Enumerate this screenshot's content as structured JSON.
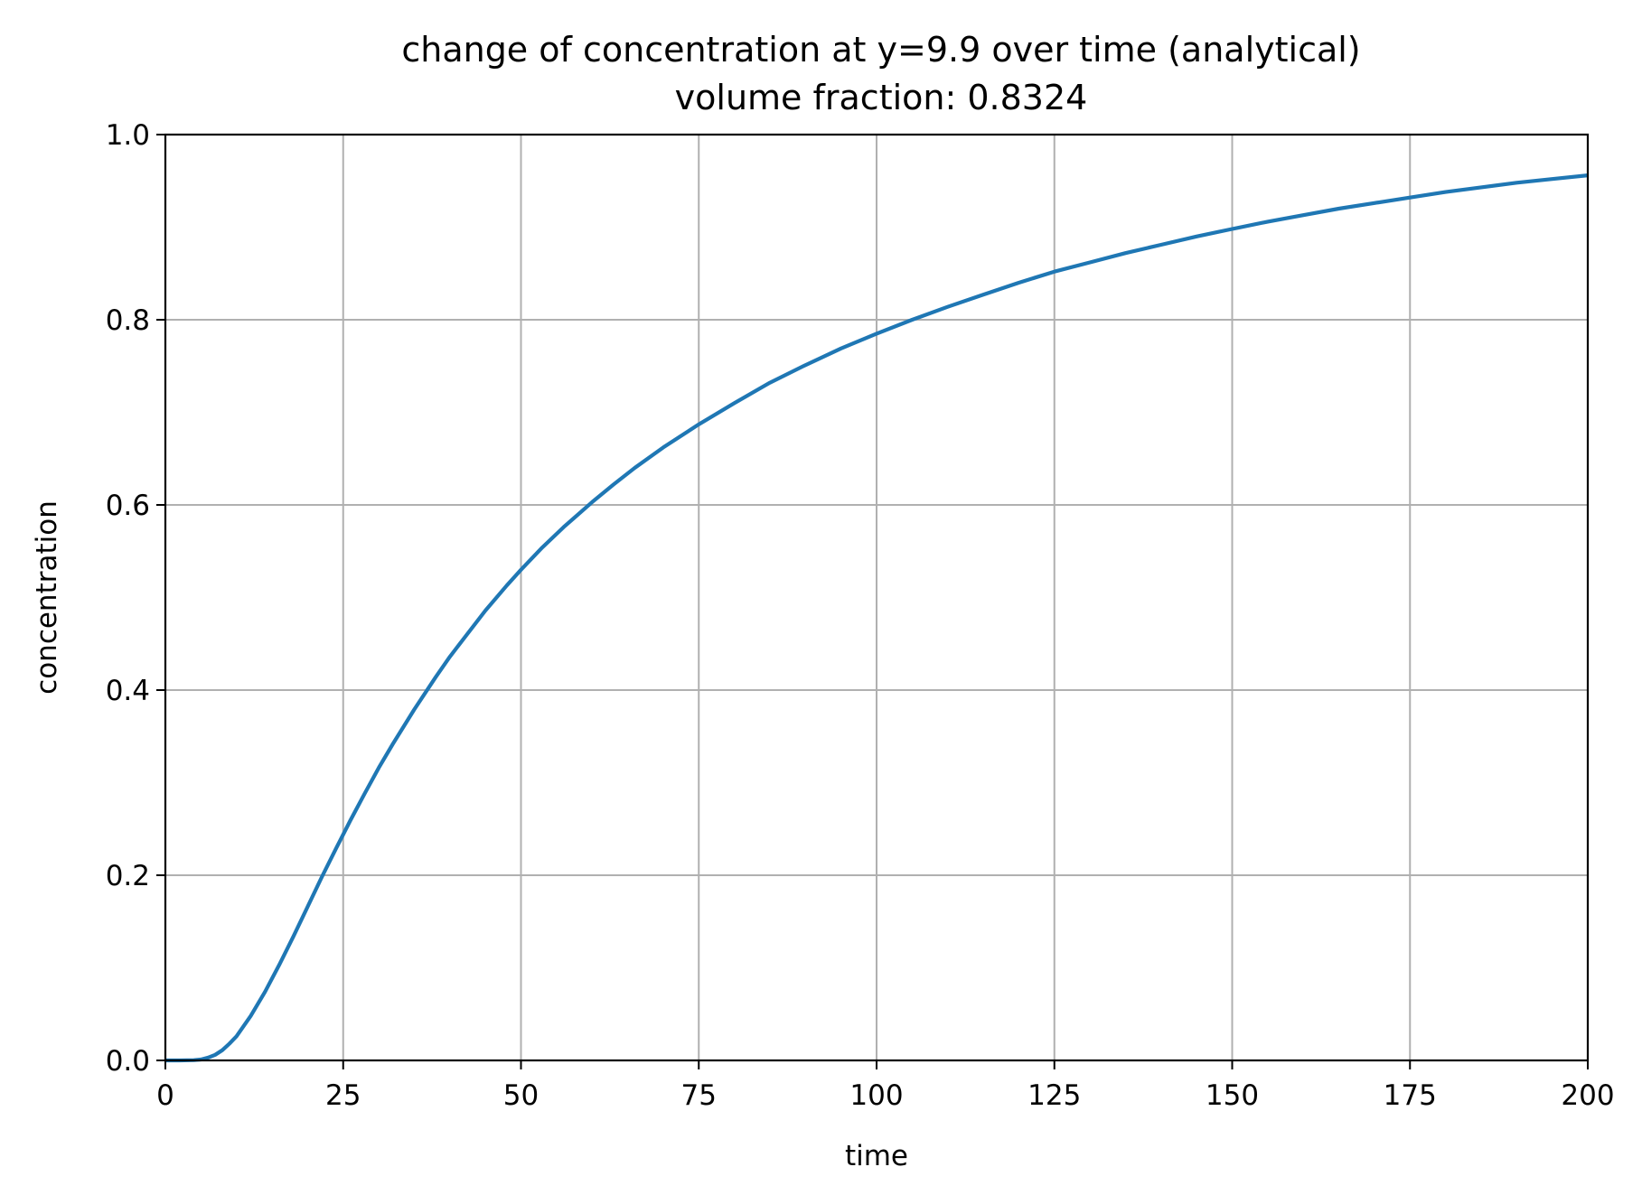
{
  "chart_data": {
    "type": "line",
    "title": "change of concentration at y=9.9 over time (analytical)",
    "subtitle": "volume fraction: 0.8324",
    "xlabel": "time",
    "ylabel": "concentration",
    "xlim": [
      0,
      200
    ],
    "ylim": [
      0,
      1.0
    ],
    "xticks": [
      0,
      25,
      50,
      75,
      100,
      125,
      150,
      175,
      200
    ],
    "xtick_labels": [
      "0",
      "25",
      "50",
      "75",
      "100",
      "125",
      "150",
      "175",
      "200"
    ],
    "yticks": [
      0,
      0.2,
      0.4,
      0.6,
      0.8,
      1.0
    ],
    "ytick_labels": [
      "0.0",
      "0.2",
      "0.4",
      "0.6",
      "0.8",
      "1.0"
    ],
    "grid": true,
    "series": [
      {
        "color": "#1f77b4",
        "x": [
          0,
          2,
          4,
          5,
          6,
          7,
          8,
          9,
          10,
          12,
          14,
          16,
          18,
          20,
          22,
          24,
          26,
          28,
          30,
          32,
          35,
          38,
          40,
          42,
          45,
          48,
          50,
          53,
          56,
          60,
          63,
          66,
          70,
          75,
          80,
          85,
          90,
          95,
          100,
          105,
          110,
          115,
          120,
          125,
          130,
          135,
          140,
          145,
          150,
          155,
          160,
          165,
          170,
          175,
          180,
          185,
          190,
          195,
          200
        ],
        "y": [
          0,
          0,
          0.0003,
          0.001,
          0.003,
          0.006,
          0.011,
          0.018,
          0.026,
          0.048,
          0.074,
          0.103,
          0.134,
          0.166,
          0.198,
          0.229,
          0.259,
          0.288,
          0.316,
          0.342,
          0.379,
          0.414,
          0.436,
          0.456,
          0.486,
          0.513,
          0.53,
          0.554,
          0.576,
          0.603,
          0.622,
          0.64,
          0.662,
          0.687,
          0.71,
          0.732,
          0.751,
          0.769,
          0.785,
          0.8,
          0.814,
          0.827,
          0.84,
          0.852,
          0.862,
          0.872,
          0.881,
          0.89,
          0.898,
          0.906,
          0.913,
          0.92,
          0.926,
          0.932,
          0.938,
          0.943,
          0.948,
          0.952,
          0.956
        ]
      }
    ]
  }
}
